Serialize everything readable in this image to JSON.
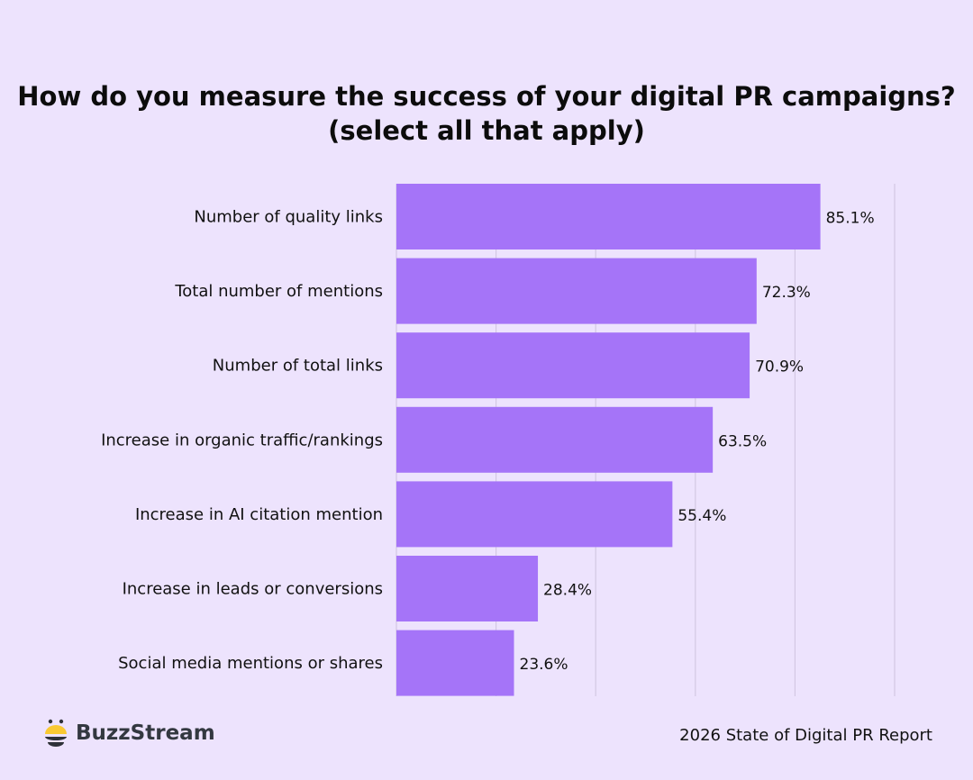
{
  "chart_data": {
    "type": "bar",
    "orientation": "horizontal",
    "title": "How do you measure the success of your digital PR campaigns? (select all that apply)",
    "categories": [
      "Number of quality links",
      "Total number of mentions",
      "Number of total links",
      "Increase in organic traffic/rankings",
      "Increase in AI citation mention",
      "Increase in leads or conversions",
      "Social media mentions or shares"
    ],
    "values": [
      85.1,
      72.3,
      70.9,
      63.5,
      55.4,
      28.4,
      23.6
    ],
    "labels": [
      "85.1%",
      "72.3%",
      "70.9%",
      "63.5%",
      "55.4%",
      "28.4%",
      "23.6%"
    ],
    "xlim": [
      0,
      100
    ],
    "grid": true,
    "bar_color": "#a574f8",
    "grid_color": "#d3c8e3"
  },
  "branding": {
    "logo_text": "BuzzStream",
    "logo_colors": {
      "yellow": "#f9c932",
      "dark": "#2e3138"
    }
  },
  "footer": {
    "report": "2026 State of Digital PR Report"
  },
  "background": "#ede3fd"
}
